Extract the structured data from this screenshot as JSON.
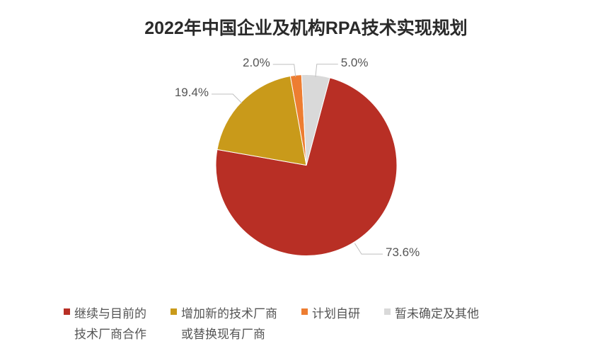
{
  "chart": {
    "type": "pie",
    "title": "2022年中国企业及机构RPA技术实现规划",
    "title_fontsize": 25,
    "title_color": "#2a2a2a",
    "background_color": "#ffffff",
    "radius": 128,
    "start_angle_deg": 15,
    "direction": "clockwise",
    "label_fontsize": 17,
    "label_color": "#555555",
    "leader_color": "#bfbfbf",
    "slices": [
      {
        "label": "继续与目前的\n技术厂商合作",
        "value": 73.6,
        "display": "73.6%",
        "color": "#b82f25"
      },
      {
        "label": "增加新的技术厂商\n或替换现有厂商",
        "value": 19.4,
        "display": "19.4%",
        "color": "#c99a1a"
      },
      {
        "label": "计划自研",
        "value": 2.0,
        "display": "2.0%",
        "color": "#ed7d31"
      },
      {
        "label": "暂未确定及其他",
        "value": 5.0,
        "display": "5.0%",
        "color": "#d9d9d9"
      }
    ],
    "legend_fontsize": 17,
    "legend_text_color": "#555555",
    "legend_swatch_size": 9
  }
}
